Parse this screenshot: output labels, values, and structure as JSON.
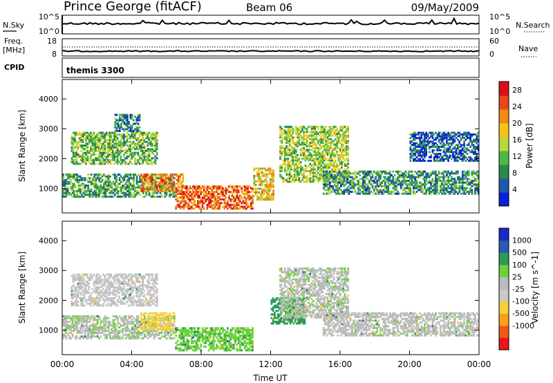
{
  "header": {
    "station": "Prince George (fitACF)",
    "beam": "Beam 06",
    "date": "09/May/2009"
  },
  "side_labels": {
    "nsky": "N.Sky",
    "nsearch": "N.Search",
    "freq": "Freq.",
    "freq_unit": "[MHz]",
    "nave": "Nave",
    "cpid": "CPID",
    "cpid_value": "themis 3300"
  },
  "axis_text": {
    "nsky_top": "10^5",
    "nsky_bottom": "10^0",
    "nsearch_top": "10^5",
    "nsearch_bottom": "10^0",
    "freq_top": "18",
    "freq_bottom": "8",
    "nave_top": "60",
    "nave_bottom": "0"
  },
  "colors": {
    "power_scale": [
      "#0a1fd6",
      "#1f5aa8",
      "#2a8a4a",
      "#4fb84a",
      "#b8d83a",
      "#f5c21a",
      "#f08a18",
      "#e8481a",
      "#d8101a"
    ],
    "velocity_scale": [
      "#e8141a",
      "#f05a18",
      "#f5a21a",
      "#f5d23a",
      "#c8c8c8",
      "#bcbcbc",
      "#6cd23a",
      "#2e9a5a",
      "#2a5ab4",
      "#1a2ac8"
    ]
  },
  "chart_data": [
    {
      "type": "heatmap",
      "title": "Power",
      "xlabel": "Time UT",
      "ylabel": "Slant Range [km]",
      "x_ticks": [
        "00:00",
        "04:00",
        "08:00",
        "12:00",
        "16:00",
        "20:00",
        "00:00"
      ],
      "y_ticks": [
        1000,
        2000,
        3000,
        4000
      ],
      "ylim": [
        180,
        4650
      ],
      "colorbar": {
        "label": "Power [dB]",
        "ticks": [
          4,
          8,
          12,
          16,
          20,
          24,
          28
        ],
        "range": [
          0,
          30
        ]
      },
      "regions": [
        {
          "t0": 0.0,
          "t1": 6.5,
          "r0": 700,
          "r1": 1500,
          "power": 10
        },
        {
          "t0": 0.5,
          "t1": 5.5,
          "r0": 1800,
          "r1": 2900,
          "power": 12
        },
        {
          "t0": 3.0,
          "t1": 4.5,
          "r0": 2900,
          "r1": 3500,
          "power": 8
        },
        {
          "t0": 4.5,
          "t1": 7.0,
          "r0": 900,
          "r1": 1500,
          "power": 22
        },
        {
          "t0": 6.5,
          "t1": 11.0,
          "r0": 300,
          "r1": 1100,
          "power": 24
        },
        {
          "t0": 11.0,
          "t1": 12.2,
          "r0": 600,
          "r1": 1700,
          "power": 18
        },
        {
          "t0": 12.5,
          "t1": 16.5,
          "r0": 1200,
          "r1": 3100,
          "power": 14
        },
        {
          "t0": 15.0,
          "t1": 24.0,
          "r0": 800,
          "r1": 1600,
          "power": 9
        },
        {
          "t0": 20.0,
          "t1": 24.0,
          "r0": 1900,
          "r1": 2900,
          "power": 5
        }
      ]
    },
    {
      "type": "heatmap",
      "title": "Velocity",
      "xlabel": "Time UT",
      "ylabel": "Slant Range [km]",
      "x_ticks": [
        "00:00",
        "04:00",
        "08:00",
        "12:00",
        "16:00",
        "20:00",
        "00:00"
      ],
      "y_ticks": [
        1000,
        2000,
        3000,
        4000
      ],
      "ylim": [
        180,
        4650
      ],
      "colorbar": {
        "label": "Velocity [m s^-1]",
        "ticks": [
          "1000",
          "500",
          "100",
          "25",
          "-25",
          "-100",
          "-500",
          "-1000"
        ]
      },
      "regions": [
        {
          "t0": 0.0,
          "t1": 6.5,
          "r0": 700,
          "r1": 1500,
          "velocity": 10
        },
        {
          "t0": 0.5,
          "t1": 5.5,
          "r0": 1800,
          "r1": 2900,
          "velocity": -40
        },
        {
          "t0": 4.5,
          "t1": 6.5,
          "r0": 1000,
          "r1": 1600,
          "velocity": -300
        },
        {
          "t0": 6.5,
          "t1": 11.0,
          "r0": 300,
          "r1": 1100,
          "velocity": 80
        },
        {
          "t0": 12.0,
          "t1": 14.0,
          "r0": 1200,
          "r1": 2100,
          "velocity": 200
        },
        {
          "t0": 12.5,
          "t1": 16.5,
          "r0": 1400,
          "r1": 3100,
          "velocity": 5
        },
        {
          "t0": 15.0,
          "t1": 24.0,
          "r0": 800,
          "r1": 1600,
          "velocity": 0
        }
      ]
    }
  ]
}
